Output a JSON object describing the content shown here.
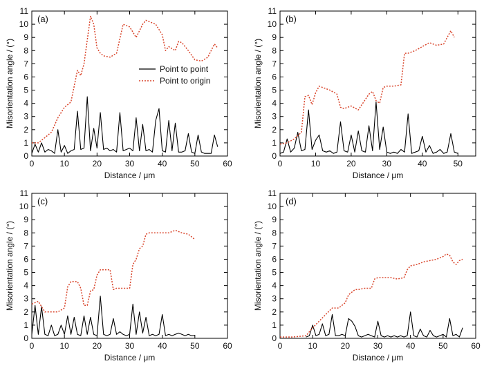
{
  "colors": {
    "point_to_point": "#000000",
    "point_to_origin": "#d9452b",
    "axis": "#000000"
  },
  "chart_data": [
    {
      "type": "line",
      "panel_label": "(a)",
      "xlabel": "Distance / μm",
      "ylabel": "Misorientation angle / (°)",
      "xlim": [
        0,
        60
      ],
      "ylim": [
        0,
        11
      ],
      "xticks": [
        0,
        10,
        20,
        30,
        40,
        50,
        60
      ],
      "yticks": [
        0,
        1,
        2,
        3,
        4,
        5,
        6,
        7,
        8,
        9,
        10,
        11
      ],
      "grid": false,
      "legend": {
        "position": "center-right",
        "entries": [
          "Point to point",
          "Point to origin"
        ]
      },
      "series": [
        {
          "name": "Point to point",
          "style": "solid",
          "x": [
            0,
            1,
            2,
            3,
            4,
            5,
            6,
            7,
            8,
            9,
            10,
            11,
            12,
            13,
            14,
            15,
            16,
            17,
            18,
            19,
            20,
            21,
            22,
            23,
            24,
            25,
            26,
            27,
            28,
            29,
            30,
            31,
            32,
            33,
            34,
            35,
            36,
            37,
            38,
            39,
            40,
            41,
            42,
            43,
            44,
            45,
            46,
            47,
            48,
            49,
            50,
            51,
            52,
            53,
            54,
            55,
            56,
            57
          ],
          "y": [
            0.2,
            0.9,
            0.3,
            1.0,
            0.3,
            0.5,
            0.4,
            0.2,
            2.0,
            0.3,
            0.8,
            0.2,
            0.4,
            0.5,
            3.4,
            0.5,
            0.6,
            4.5,
            0.4,
            2.1,
            0.6,
            3.3,
            0.5,
            0.6,
            0.4,
            0.5,
            0.3,
            3.3,
            0.4,
            0.5,
            0.6,
            0.4,
            2.9,
            0.4,
            2.4,
            0.4,
            0.5,
            0.3,
            2.7,
            3.6,
            0.4,
            0.3,
            2.7,
            0.4,
            2.5,
            0.3,
            0.3,
            0.4,
            1.7,
            0.3,
            0.2,
            1.6,
            0.3,
            0.2,
            0.2,
            0.2,
            1.6,
            0.7
          ]
        },
        {
          "name": "Point to origin",
          "style": "dotted",
          "x": [
            0,
            2,
            4,
            6,
            8,
            10,
            12,
            14,
            15,
            16,
            17,
            18,
            19,
            20,
            21,
            22,
            24,
            26,
            28,
            30,
            32,
            34,
            35,
            36,
            38,
            40,
            41,
            42,
            44,
            45,
            46,
            48,
            50,
            52,
            54,
            56,
            57
          ],
          "y": [
            1.0,
            1.0,
            1.4,
            1.8,
            2.9,
            3.7,
            4.1,
            6.5,
            6.1,
            7.0,
            8.8,
            10.6,
            10.0,
            8.2,
            7.8,
            7.6,
            7.5,
            7.8,
            10.0,
            9.8,
            9.0,
            10.0,
            10.3,
            10.2,
            10.0,
            9.2,
            8.0,
            8.3,
            8.0,
            8.7,
            8.6,
            8.0,
            7.3,
            7.2,
            7.5,
            8.5,
            8.2
          ]
        }
      ]
    },
    {
      "type": "line",
      "panel_label": "(b)",
      "xlabel": "Distance / μm",
      "ylabel": "Misorientation angle / (°)",
      "xlim": [
        0,
        55
      ],
      "ylim": [
        0,
        11
      ],
      "xticks": [
        0,
        10,
        20,
        30,
        40,
        50
      ],
      "yticks": [
        0,
        1,
        2,
        3,
        4,
        5,
        6,
        7,
        8,
        9,
        10,
        11
      ],
      "grid": false,
      "series": [
        {
          "name": "Point to point",
          "style": "solid",
          "x": [
            0,
            1,
            2,
            3,
            4,
            5,
            6,
            7,
            8,
            9,
            10,
            11,
            12,
            13,
            14,
            15,
            16,
            17,
            18,
            19,
            20,
            21,
            22,
            23,
            24,
            25,
            26,
            27,
            28,
            29,
            30,
            31,
            32,
            33,
            34,
            35,
            36,
            37,
            38,
            39,
            40,
            41,
            42,
            43,
            44,
            45,
            46,
            47,
            48,
            49,
            50
          ],
          "y": [
            0.2,
            0.3,
            1.3,
            0.3,
            0.6,
            1.8,
            0.4,
            0.5,
            3.5,
            0.5,
            1.2,
            1.6,
            0.4,
            0.3,
            0.4,
            0.2,
            0.3,
            2.6,
            0.4,
            0.3,
            1.6,
            0.3,
            1.9,
            0.4,
            0.3,
            2.3,
            0.4,
            4.1,
            0.5,
            2.2,
            0.3,
            0.2,
            0.3,
            0.2,
            0.5,
            0.3,
            3.2,
            0.2,
            0.3,
            0.4,
            1.5,
            0.3,
            0.8,
            0.2,
            0.3,
            0.5,
            0.2,
            0.3,
            1.7,
            0.3,
            0.2
          ]
        },
        {
          "name": "Point to origin",
          "style": "dotted",
          "x": [
            0,
            2,
            4,
            6,
            7,
            8,
            9,
            10,
            11,
            14,
            16,
            17,
            18,
            20,
            22,
            24,
            25,
            26,
            27,
            28,
            29,
            30,
            32,
            34,
            35,
            36,
            38,
            40,
            42,
            44,
            46,
            47,
            48,
            49
          ],
          "y": [
            0.9,
            1.0,
            1.3,
            1.8,
            4.5,
            4.6,
            3.9,
            4.8,
            5.3,
            5.0,
            4.7,
            3.7,
            3.6,
            3.8,
            3.5,
            4.3,
            4.7,
            4.9,
            4.2,
            4.0,
            5.2,
            5.3,
            5.3,
            5.4,
            7.8,
            7.8,
            8.0,
            8.3,
            8.6,
            8.4,
            8.5,
            9.0,
            9.5,
            9.0
          ]
        }
      ]
    },
    {
      "type": "line",
      "panel_label": "(c)",
      "xlabel": "Distance / μm",
      "ylabel": "Misorientation angle / (°)",
      "xlim": [
        0,
        60
      ],
      "ylim": [
        0,
        11
      ],
      "xticks": [
        0,
        10,
        20,
        30,
        40,
        50,
        60
      ],
      "yticks": [
        0,
        1,
        2,
        3,
        4,
        5,
        6,
        7,
        8,
        9,
        10,
        11
      ],
      "grid": false,
      "series": [
        {
          "name": "Point to point",
          "style": "solid",
          "x": [
            0,
            1,
            2,
            3,
            4,
            5,
            6,
            7,
            8,
            9,
            10,
            11,
            12,
            13,
            14,
            15,
            16,
            17,
            18,
            19,
            20,
            21,
            22,
            23,
            24,
            25,
            26,
            27,
            28,
            29,
            30,
            31,
            32,
            33,
            34,
            35,
            36,
            37,
            38,
            39,
            40,
            41,
            42,
            43,
            44,
            45,
            46,
            47,
            48,
            49,
            50
          ],
          "y": [
            0.3,
            2.5,
            0.3,
            2.4,
            0.3,
            0.2,
            1.0,
            0.2,
            0.3,
            1.0,
            0.3,
            1.7,
            0.3,
            1.6,
            0.3,
            0.2,
            1.7,
            0.3,
            1.6,
            0.3,
            0.2,
            3.2,
            0.3,
            0.2,
            0.3,
            1.5,
            0.3,
            0.5,
            0.3,
            0.2,
            0.3,
            2.6,
            0.3,
            2.0,
            0.4,
            1.6,
            0.2,
            0.3,
            0.2,
            0.3,
            1.8,
            0.2,
            0.3,
            0.2,
            0.3,
            0.4,
            0.3,
            0.2,
            0.3,
            0.2,
            0.2
          ]
        },
        {
          "name": "Point to origin",
          "style": "dotted",
          "x": [
            0,
            2,
            4,
            6,
            8,
            10,
            11,
            12,
            14,
            15,
            16,
            17,
            18,
            19,
            20,
            21,
            22,
            24,
            25,
            26,
            28,
            30,
            31,
            32,
            33,
            34,
            35,
            36,
            38,
            40,
            42,
            44,
            46,
            48,
            50
          ],
          "y": [
            2.6,
            2.8,
            2.0,
            2.0,
            2.0,
            2.3,
            3.9,
            4.3,
            4.3,
            3.8,
            2.5,
            2.5,
            3.6,
            3.7,
            4.8,
            5.2,
            5.2,
            5.2,
            3.7,
            3.8,
            3.8,
            3.8,
            5.6,
            6.0,
            6.8,
            7.0,
            7.9,
            8.0,
            8.0,
            8.0,
            8.0,
            8.2,
            8.0,
            7.9,
            7.5
          ]
        }
      ]
    },
    {
      "type": "line",
      "panel_label": "(d)",
      "xlabel": "Distance / μm",
      "ylabel": "Misorientation angle / (°)",
      "xlim": [
        0,
        60
      ],
      "ylim": [
        0,
        11
      ],
      "xticks": [
        0,
        10,
        20,
        30,
        40,
        50,
        60
      ],
      "yticks": [
        0,
        1,
        2,
        3,
        4,
        5,
        6,
        7,
        8,
        9,
        10,
        11
      ],
      "grid": false,
      "series": [
        {
          "name": "Point to point",
          "style": "solid",
          "x": [
            8,
            9,
            10,
            11,
            12,
            13,
            14,
            15,
            16,
            17,
            18,
            19,
            20,
            21,
            22,
            23,
            24,
            25,
            26,
            27,
            28,
            29,
            30,
            31,
            32,
            33,
            34,
            35,
            36,
            37,
            38,
            39,
            40,
            41,
            42,
            43,
            44,
            45,
            46,
            47,
            48,
            49,
            50,
            51,
            52,
            53,
            54,
            55,
            56
          ],
          "y": [
            0.1,
            0.2,
            1.0,
            0.2,
            0.3,
            1.1,
            0.2,
            0.3,
            1.8,
            0.2,
            0.2,
            0.3,
            0.2,
            1.5,
            1.3,
            0.9,
            0.2,
            0.1,
            0.2,
            0.3,
            0.2,
            0.1,
            1.3,
            0.2,
            0.1,
            0.2,
            0.1,
            0.2,
            0.1,
            0.2,
            0.1,
            0.2,
            2.0,
            0.2,
            0.1,
            0.7,
            0.2,
            0.1,
            0.6,
            0.2,
            0.1,
            0.2,
            0.3,
            0.1,
            1.5,
            0.2,
            0.3,
            0.1,
            0.8
          ]
        },
        {
          "name": "Point to origin",
          "style": "dotted",
          "x": [
            0,
            4,
            8,
            10,
            12,
            14,
            16,
            18,
            20,
            21,
            22,
            23,
            24,
            26,
            28,
            29,
            30,
            32,
            34,
            36,
            38,
            39,
            40,
            42,
            44,
            46,
            48,
            50,
            51,
            52,
            53,
            54,
            55,
            56
          ],
          "y": [
            0.1,
            0.1,
            0.2,
            0.8,
            1.3,
            1.8,
            2.3,
            2.3,
            2.7,
            3.3,
            3.5,
            3.7,
            3.7,
            3.8,
            3.8,
            4.5,
            4.6,
            4.6,
            4.6,
            4.5,
            4.6,
            5.2,
            5.5,
            5.6,
            5.8,
            5.9,
            6.0,
            6.2,
            6.4,
            6.3,
            5.8,
            5.6,
            5.9,
            6.0
          ]
        }
      ]
    }
  ]
}
